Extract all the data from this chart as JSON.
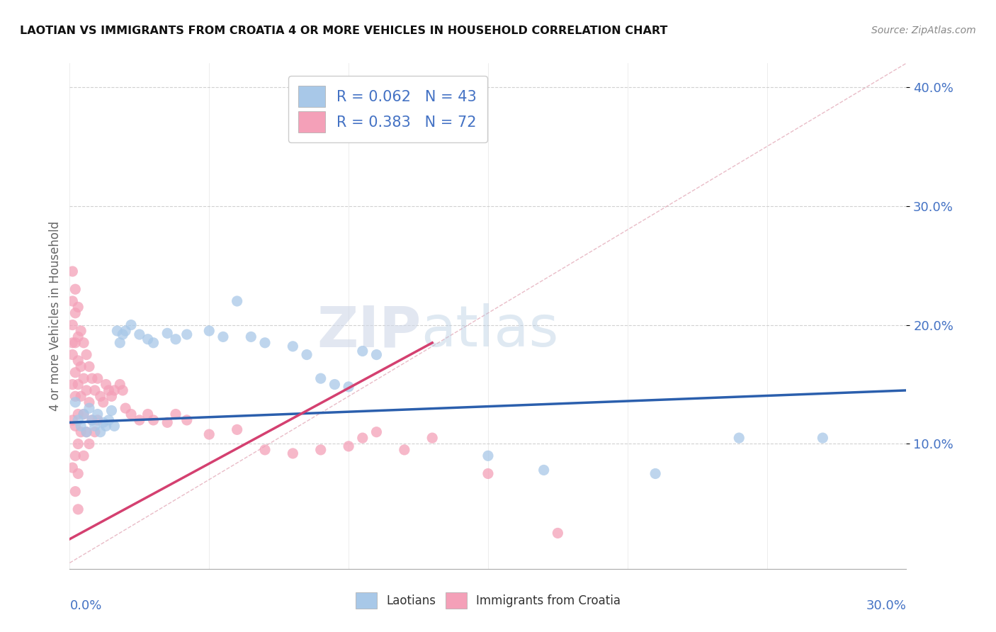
{
  "title": "LAOTIAN VS IMMIGRANTS FROM CROATIA 4 OR MORE VEHICLES IN HOUSEHOLD CORRELATION CHART",
  "source": "Source: ZipAtlas.com",
  "ylabel": "4 or more Vehicles in Household",
  "xlim": [
    0.0,
    0.3
  ],
  "ylim": [
    -0.005,
    0.42
  ],
  "watermark_zip": "ZIP",
  "watermark_atlas": "atlas",
  "legend1_label": "R = 0.062   N = 43",
  "legend2_label": "R = 0.383   N = 72",
  "legend_bottom_label1": "Laotians",
  "legend_bottom_label2": "Immigrants from Croatia",
  "blue_scatter_color": "#a8c8e8",
  "pink_scatter_color": "#f4a0b8",
  "blue_line_color": "#2b5fad",
  "pink_line_color": "#d44070",
  "blue_line_x": [
    0.0,
    0.3
  ],
  "blue_line_y": [
    0.118,
    0.145
  ],
  "pink_line_x": [
    0.0,
    0.13
  ],
  "pink_line_y": [
    0.02,
    0.185
  ],
  "diag_line_x": [
    0.0,
    0.3
  ],
  "diag_line_y": [
    0.0,
    0.42
  ],
  "laotian_x": [
    0.002,
    0.003,
    0.004,
    0.005,
    0.006,
    0.007,
    0.008,
    0.009,
    0.01,
    0.011,
    0.012,
    0.013,
    0.014,
    0.015,
    0.016,
    0.017,
    0.018,
    0.019,
    0.02,
    0.022,
    0.025,
    0.028,
    0.03,
    0.035,
    0.038,
    0.042,
    0.05,
    0.055,
    0.06,
    0.065,
    0.07,
    0.08,
    0.085,
    0.09,
    0.095,
    0.1,
    0.105,
    0.11,
    0.15,
    0.17,
    0.21,
    0.24,
    0.27
  ],
  "laotian_y": [
    0.135,
    0.12,
    0.115,
    0.125,
    0.11,
    0.13,
    0.12,
    0.115,
    0.125,
    0.11,
    0.118,
    0.115,
    0.12,
    0.128,
    0.115,
    0.195,
    0.185,
    0.192,
    0.195,
    0.2,
    0.192,
    0.188,
    0.185,
    0.193,
    0.188,
    0.192,
    0.195,
    0.19,
    0.22,
    0.19,
    0.185,
    0.182,
    0.175,
    0.155,
    0.15,
    0.148,
    0.178,
    0.175,
    0.09,
    0.078,
    0.075,
    0.105,
    0.105
  ],
  "croatia_x": [
    0.001,
    0.001,
    0.001,
    0.001,
    0.001,
    0.001,
    0.001,
    0.001,
    0.002,
    0.002,
    0.002,
    0.002,
    0.002,
    0.002,
    0.002,
    0.002,
    0.003,
    0.003,
    0.003,
    0.003,
    0.003,
    0.003,
    0.003,
    0.003,
    0.004,
    0.004,
    0.004,
    0.004,
    0.005,
    0.005,
    0.005,
    0.005,
    0.006,
    0.006,
    0.006,
    0.007,
    0.007,
    0.007,
    0.008,
    0.008,
    0.009,
    0.009,
    0.01,
    0.01,
    0.011,
    0.012,
    0.013,
    0.014,
    0.015,
    0.016,
    0.018,
    0.019,
    0.02,
    0.022,
    0.025,
    0.028,
    0.03,
    0.035,
    0.038,
    0.042,
    0.05,
    0.06,
    0.07,
    0.08,
    0.09,
    0.1,
    0.105,
    0.11,
    0.12,
    0.13,
    0.15,
    0.175
  ],
  "croatia_y": [
    0.245,
    0.22,
    0.2,
    0.185,
    0.175,
    0.15,
    0.12,
    0.08,
    0.23,
    0.21,
    0.185,
    0.16,
    0.14,
    0.115,
    0.09,
    0.06,
    0.215,
    0.19,
    0.17,
    0.15,
    0.125,
    0.1,
    0.075,
    0.045,
    0.195,
    0.165,
    0.14,
    0.11,
    0.185,
    0.155,
    0.125,
    0.09,
    0.175,
    0.145,
    0.11,
    0.165,
    0.135,
    0.1,
    0.155,
    0.12,
    0.145,
    0.11,
    0.155,
    0.12,
    0.14,
    0.135,
    0.15,
    0.145,
    0.14,
    0.145,
    0.15,
    0.145,
    0.13,
    0.125,
    0.12,
    0.125,
    0.12,
    0.118,
    0.125,
    0.12,
    0.108,
    0.112,
    0.095,
    0.092,
    0.095,
    0.098,
    0.105,
    0.11,
    0.095,
    0.105,
    0.075,
    0.025
  ]
}
